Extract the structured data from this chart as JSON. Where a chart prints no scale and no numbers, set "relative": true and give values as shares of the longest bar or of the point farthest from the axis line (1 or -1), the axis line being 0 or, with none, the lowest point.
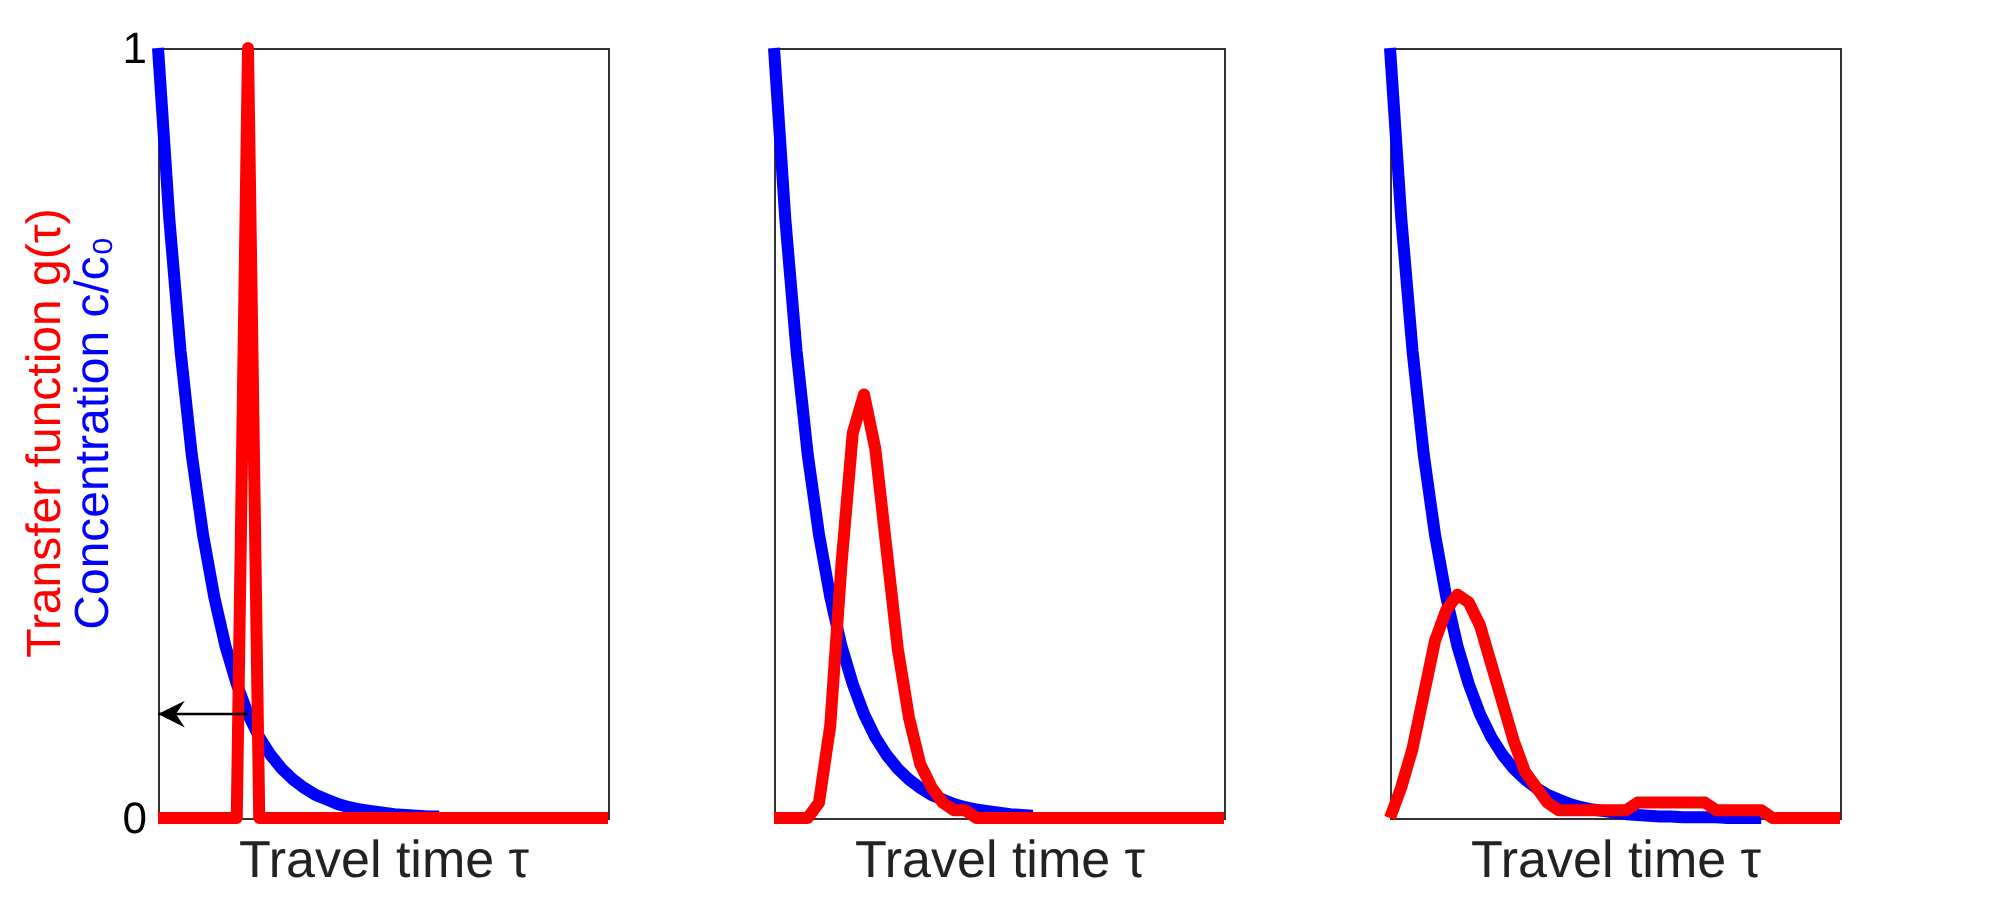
{
  "chart_data": [
    {
      "type": "line",
      "xlabel": "Travel time τ",
      "ylim": [
        0,
        1
      ],
      "yticks": [
        0,
        1
      ],
      "grid": false,
      "tick_labels": "y",
      "marker": "none",
      "line_style": "solid",
      "categories": [
        null,
        null,
        null,
        null,
        null,
        null,
        null,
        null,
        null,
        null,
        null,
        null,
        null,
        null,
        null,
        null,
        null,
        null,
        null,
        null,
        null,
        null,
        null,
        null,
        null,
        null,
        null,
        null,
        null,
        null,
        null,
        null,
        null,
        null,
        null,
        null,
        null,
        null,
        null,
        null,
        null
      ],
      "series": [
        {
          "name": "Concentration c/c₀",
          "color": "#0000ff",
          "values": [
            1,
            0.779,
            0.607,
            0.472,
            0.368,
            0.287,
            0.223,
            0.174,
            0.135,
            0.105,
            0.082,
            0.064,
            0.05,
            0.039,
            0.03,
            0.024,
            0.018,
            0.014,
            0.011,
            0.009,
            0.007,
            0.005,
            0.004,
            0.003,
            0.002,
            0.002,
            null,
            null,
            null,
            null,
            null,
            null,
            null,
            null,
            null,
            null,
            null,
            null,
            null,
            null,
            null
          ]
        },
        {
          "name": "Transfer function g(τ)",
          "color": "#ff0000",
          "values": [
            0,
            0,
            0,
            0,
            0,
            0,
            0,
            0,
            1,
            0,
            0,
            0,
            0,
            0,
            0,
            0,
            0,
            0,
            0,
            0,
            0,
            0,
            0,
            0,
            0,
            0,
            0,
            0,
            0,
            0,
            0,
            0,
            0,
            0,
            0,
            0,
            0,
            0,
            0,
            0,
            0
          ]
        }
      ]
    },
    {
      "type": "line",
      "xlabel": "Travel time τ",
      "relative": true,
      "grid": false,
      "tick_labels": false,
      "marker": "none",
      "line_style": "solid",
      "categories": [
        null,
        null,
        null,
        null,
        null,
        null,
        null,
        null,
        null,
        null,
        null,
        null,
        null,
        null,
        null,
        null,
        null,
        null,
        null,
        null,
        null,
        null,
        null,
        null,
        null,
        null,
        null,
        null,
        null,
        null,
        null,
        null,
        null,
        null,
        null,
        null,
        null,
        null,
        null,
        null,
        null
      ],
      "series": [
        {
          "color": "#0000ff",
          "values": [
            1,
            0.779,
            0.607,
            0.472,
            0.368,
            0.287,
            0.223,
            0.174,
            0.135,
            0.105,
            0.082,
            0.064,
            0.05,
            0.039,
            0.03,
            0.024,
            0.018,
            0.014,
            0.011,
            0.009,
            0.007,
            0.005,
            0.004,
            0.003,
            null,
            null,
            null,
            null,
            null,
            null,
            null,
            null,
            null,
            null,
            null,
            null,
            null,
            null,
            null,
            null,
            null
          ]
        },
        {
          "color": "#ff0000",
          "values": [
            0,
            0,
            0,
            0,
            0.02,
            0.12,
            0.33,
            0.5,
            0.55,
            0.48,
            0.35,
            0.22,
            0.13,
            0.07,
            0.04,
            0.02,
            0.01,
            0.01,
            0,
            0,
            0,
            0,
            0,
            0,
            0,
            0,
            0,
            0,
            0,
            0,
            0,
            0,
            0,
            0,
            0,
            0,
            0,
            0,
            0,
            0,
            0
          ]
        }
      ]
    },
    {
      "type": "line",
      "xlabel": "Travel time τ",
      "relative": true,
      "grid": false,
      "tick_labels": false,
      "marker": "none",
      "line_style": "solid",
      "categories": [
        null,
        null,
        null,
        null,
        null,
        null,
        null,
        null,
        null,
        null,
        null,
        null,
        null,
        null,
        null,
        null,
        null,
        null,
        null,
        null,
        null,
        null,
        null,
        null,
        null,
        null,
        null,
        null,
        null,
        null,
        null,
        null,
        null,
        null,
        null,
        null,
        null,
        null,
        null,
        null,
        null
      ],
      "series": [
        {
          "color": "#0000ff",
          "values": [
            1,
            0.779,
            0.607,
            0.472,
            0.368,
            0.287,
            0.223,
            0.174,
            0.135,
            0.105,
            0.082,
            0.064,
            0.05,
            0.039,
            0.03,
            0.024,
            0.018,
            0.014,
            0.011,
            0.009,
            0.007,
            0.005,
            0.004,
            0.003,
            0.002,
            0.002,
            0.001,
            0.001,
            0.001,
            0.001,
            0,
            0,
            0,
            0,
            null,
            null,
            null,
            null,
            null,
            null,
            null
          ]
        },
        {
          "color": "#ff0000",
          "values": [
            0,
            0.04,
            0.09,
            0.16,
            0.23,
            0.27,
            0.29,
            0.28,
            0.25,
            0.2,
            0.15,
            0.1,
            0.06,
            0.04,
            0.02,
            0.01,
            0.01,
            0.01,
            0.01,
            0.01,
            0.01,
            0.01,
            0.02,
            0.02,
            0.02,
            0.02,
            0.02,
            0.02,
            0.02,
            0.01,
            0.01,
            0.01,
            0.01,
            0.01,
            0,
            0,
            0,
            0,
            0,
            0,
            0
          ]
        }
      ]
    }
  ]
}
